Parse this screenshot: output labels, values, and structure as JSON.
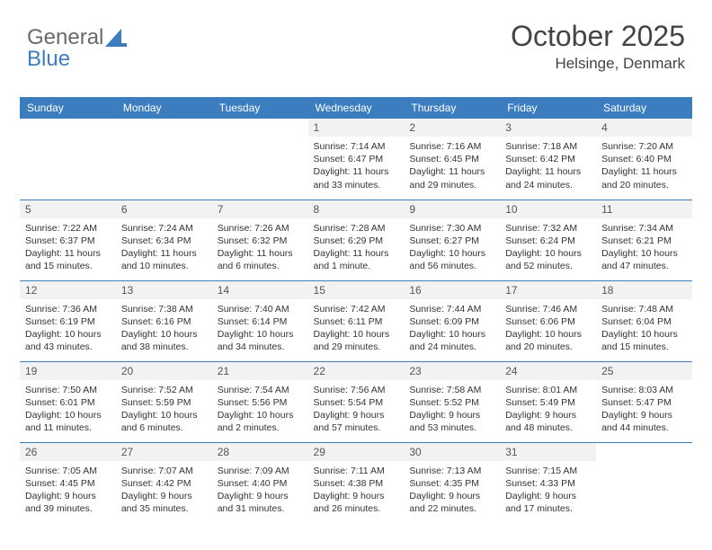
{
  "logo": {
    "text_a": "General",
    "text_b": "Blue"
  },
  "header": {
    "month_title": "October 2025",
    "location": "Helsinge, Denmark"
  },
  "colors": {
    "accent": "#3c7dbf",
    "header_text": "#ffffff",
    "body_text": "#333333",
    "daynum_bg": "#f2f2f2",
    "daynum_text": "#555555",
    "row_border": "#3c7dbf",
    "background": "#ffffff"
  },
  "typography": {
    "month_title_fontsize": 32,
    "location_fontsize": 17,
    "day_header_fontsize": 12,
    "daynum_fontsize": 12,
    "content_fontsize": 10.5
  },
  "calendar": {
    "day_headers": [
      "Sunday",
      "Monday",
      "Tuesday",
      "Wednesday",
      "Thursday",
      "Friday",
      "Saturday"
    ],
    "weeks": [
      [
        null,
        null,
        null,
        {
          "num": "1",
          "sunrise": "Sunrise: 7:14 AM",
          "sunset": "Sunset: 6:47 PM",
          "daylight": "Daylight: 11 hours and 33 minutes."
        },
        {
          "num": "2",
          "sunrise": "Sunrise: 7:16 AM",
          "sunset": "Sunset: 6:45 PM",
          "daylight": "Daylight: 11 hours and 29 minutes."
        },
        {
          "num": "3",
          "sunrise": "Sunrise: 7:18 AM",
          "sunset": "Sunset: 6:42 PM",
          "daylight": "Daylight: 11 hours and 24 minutes."
        },
        {
          "num": "4",
          "sunrise": "Sunrise: 7:20 AM",
          "sunset": "Sunset: 6:40 PM",
          "daylight": "Daylight: 11 hours and 20 minutes."
        }
      ],
      [
        {
          "num": "5",
          "sunrise": "Sunrise: 7:22 AM",
          "sunset": "Sunset: 6:37 PM",
          "daylight": "Daylight: 11 hours and 15 minutes."
        },
        {
          "num": "6",
          "sunrise": "Sunrise: 7:24 AM",
          "sunset": "Sunset: 6:34 PM",
          "daylight": "Daylight: 11 hours and 10 minutes."
        },
        {
          "num": "7",
          "sunrise": "Sunrise: 7:26 AM",
          "sunset": "Sunset: 6:32 PM",
          "daylight": "Daylight: 11 hours and 6 minutes."
        },
        {
          "num": "8",
          "sunrise": "Sunrise: 7:28 AM",
          "sunset": "Sunset: 6:29 PM",
          "daylight": "Daylight: 11 hours and 1 minute."
        },
        {
          "num": "9",
          "sunrise": "Sunrise: 7:30 AM",
          "sunset": "Sunset: 6:27 PM",
          "daylight": "Daylight: 10 hours and 56 minutes."
        },
        {
          "num": "10",
          "sunrise": "Sunrise: 7:32 AM",
          "sunset": "Sunset: 6:24 PM",
          "daylight": "Daylight: 10 hours and 52 minutes."
        },
        {
          "num": "11",
          "sunrise": "Sunrise: 7:34 AM",
          "sunset": "Sunset: 6:21 PM",
          "daylight": "Daylight: 10 hours and 47 minutes."
        }
      ],
      [
        {
          "num": "12",
          "sunrise": "Sunrise: 7:36 AM",
          "sunset": "Sunset: 6:19 PM",
          "daylight": "Daylight: 10 hours and 43 minutes."
        },
        {
          "num": "13",
          "sunrise": "Sunrise: 7:38 AM",
          "sunset": "Sunset: 6:16 PM",
          "daylight": "Daylight: 10 hours and 38 minutes."
        },
        {
          "num": "14",
          "sunrise": "Sunrise: 7:40 AM",
          "sunset": "Sunset: 6:14 PM",
          "daylight": "Daylight: 10 hours and 34 minutes."
        },
        {
          "num": "15",
          "sunrise": "Sunrise: 7:42 AM",
          "sunset": "Sunset: 6:11 PM",
          "daylight": "Daylight: 10 hours and 29 minutes."
        },
        {
          "num": "16",
          "sunrise": "Sunrise: 7:44 AM",
          "sunset": "Sunset: 6:09 PM",
          "daylight": "Daylight: 10 hours and 24 minutes."
        },
        {
          "num": "17",
          "sunrise": "Sunrise: 7:46 AM",
          "sunset": "Sunset: 6:06 PM",
          "daylight": "Daylight: 10 hours and 20 minutes."
        },
        {
          "num": "18",
          "sunrise": "Sunrise: 7:48 AM",
          "sunset": "Sunset: 6:04 PM",
          "daylight": "Daylight: 10 hours and 15 minutes."
        }
      ],
      [
        {
          "num": "19",
          "sunrise": "Sunrise: 7:50 AM",
          "sunset": "Sunset: 6:01 PM",
          "daylight": "Daylight: 10 hours and 11 minutes."
        },
        {
          "num": "20",
          "sunrise": "Sunrise: 7:52 AM",
          "sunset": "Sunset: 5:59 PM",
          "daylight": "Daylight: 10 hours and 6 minutes."
        },
        {
          "num": "21",
          "sunrise": "Sunrise: 7:54 AM",
          "sunset": "Sunset: 5:56 PM",
          "daylight": "Daylight: 10 hours and 2 minutes."
        },
        {
          "num": "22",
          "sunrise": "Sunrise: 7:56 AM",
          "sunset": "Sunset: 5:54 PM",
          "daylight": "Daylight: 9 hours and 57 minutes."
        },
        {
          "num": "23",
          "sunrise": "Sunrise: 7:58 AM",
          "sunset": "Sunset: 5:52 PM",
          "daylight": "Daylight: 9 hours and 53 minutes."
        },
        {
          "num": "24",
          "sunrise": "Sunrise: 8:01 AM",
          "sunset": "Sunset: 5:49 PM",
          "daylight": "Daylight: 9 hours and 48 minutes."
        },
        {
          "num": "25",
          "sunrise": "Sunrise: 8:03 AM",
          "sunset": "Sunset: 5:47 PM",
          "daylight": "Daylight: 9 hours and 44 minutes."
        }
      ],
      [
        {
          "num": "26",
          "sunrise": "Sunrise: 7:05 AM",
          "sunset": "Sunset: 4:45 PM",
          "daylight": "Daylight: 9 hours and 39 minutes."
        },
        {
          "num": "27",
          "sunrise": "Sunrise: 7:07 AM",
          "sunset": "Sunset: 4:42 PM",
          "daylight": "Daylight: 9 hours and 35 minutes."
        },
        {
          "num": "28",
          "sunrise": "Sunrise: 7:09 AM",
          "sunset": "Sunset: 4:40 PM",
          "daylight": "Daylight: 9 hours and 31 minutes."
        },
        {
          "num": "29",
          "sunrise": "Sunrise: 7:11 AM",
          "sunset": "Sunset: 4:38 PM",
          "daylight": "Daylight: 9 hours and 26 minutes."
        },
        {
          "num": "30",
          "sunrise": "Sunrise: 7:13 AM",
          "sunset": "Sunset: 4:35 PM",
          "daylight": "Daylight: 9 hours and 22 minutes."
        },
        {
          "num": "31",
          "sunrise": "Sunrise: 7:15 AM",
          "sunset": "Sunset: 4:33 PM",
          "daylight": "Daylight: 9 hours and 17 minutes."
        },
        null
      ]
    ]
  }
}
